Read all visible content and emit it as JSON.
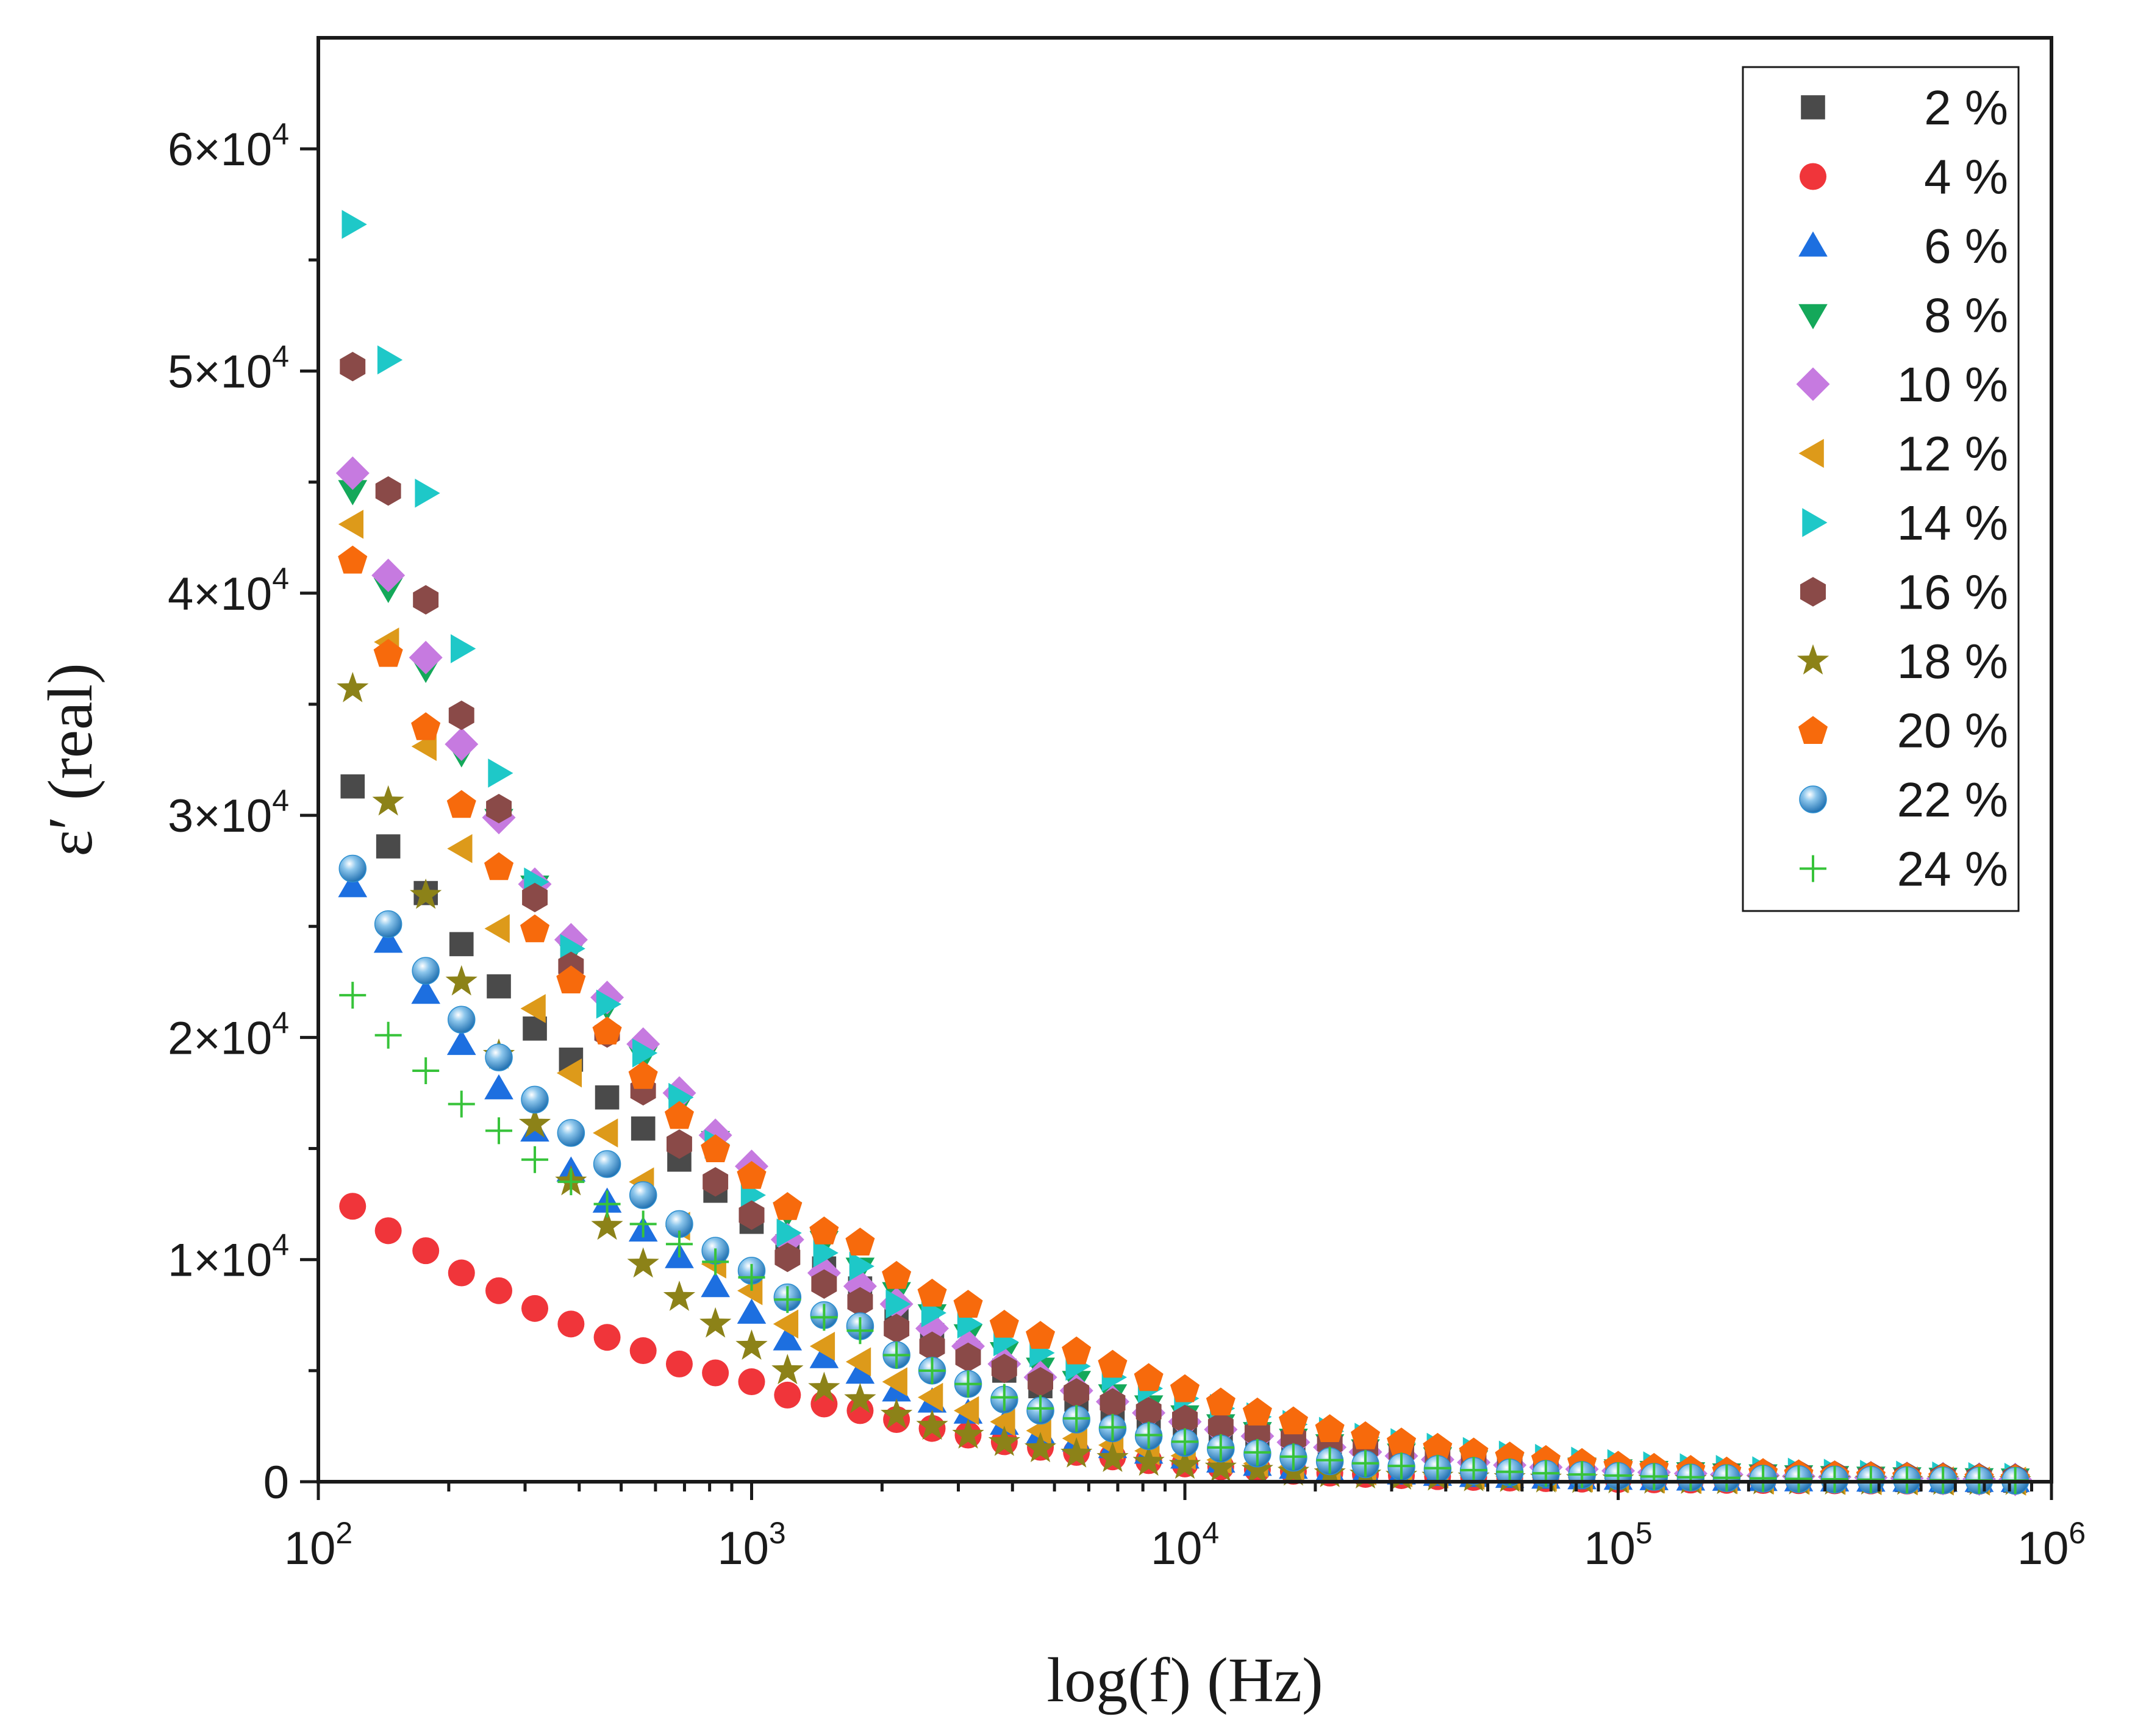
{
  "chart_data": {
    "type": "scatter",
    "title": "",
    "xlabel": "log(f) (Hz)",
    "ylabel": "ε′ (real)",
    "x_scale": "log",
    "xlim": [
      100,
      1000000
    ],
    "ylim": [
      0,
      65000
    ],
    "x_ticks": [
      {
        "base": "10",
        "exp": "2",
        "value": 100
      },
      {
        "base": "10",
        "exp": "3",
        "value": 1000
      },
      {
        "base": "10",
        "exp": "4",
        "value": 10000
      },
      {
        "base": "10",
        "exp": "5",
        "value": 100000
      },
      {
        "base": "10",
        "exp": "6",
        "value": 1000000
      }
    ],
    "y_ticks": [
      {
        "mant": "",
        "base": "0",
        "exp": "",
        "value": 0
      },
      {
        "mant": "1×",
        "base": "10",
        "exp": "4",
        "value": 10000
      },
      {
        "mant": "2×",
        "base": "10",
        "exp": "4",
        "value": 20000
      },
      {
        "mant": "3×",
        "base": "10",
        "exp": "4",
        "value": 30000
      },
      {
        "mant": "4×",
        "base": "10",
        "exp": "4",
        "value": 40000
      },
      {
        "mant": "5×",
        "base": "10",
        "exp": "4",
        "value": 50000
      },
      {
        "mant": "6×",
        "base": "10",
        "exp": "4",
        "value": 60000
      }
    ],
    "legend_position": "top-right",
    "x": [
      120,
      145,
      177,
      214,
      261,
      316,
      383,
      464,
      562,
      681,
      825,
      1000,
      1210,
      1470,
      1780,
      2160,
      2610,
      3160,
      3830,
      4640,
      5620,
      6810,
      8250,
      10000,
      12100,
      14700,
      17800,
      21600,
      26100,
      31600,
      38300,
      46400,
      56200,
      68100,
      82500,
      100000,
      121000,
      147000,
      178000,
      216000,
      261000,
      316000,
      383000,
      464000,
      562000,
      681000,
      825000
    ],
    "series": [
      {
        "name": "2 %",
        "marker": "square",
        "color": "#4a4a4a",
        "values": [
          31300,
          28600,
          26500,
          24200,
          22300,
          20400,
          19000,
          17300,
          15900,
          14500,
          13100,
          11700,
          10600,
          9600,
          8700,
          7600,
          6600,
          5800,
          5000,
          4300,
          3700,
          3100,
          2600,
          2200,
          1850,
          1550,
          1300,
          1080,
          900,
          750,
          630,
          530,
          450,
          380,
          320,
          270,
          230,
          195,
          165,
          140,
          120,
          103,
          88,
          75,
          65,
          56,
          48
        ]
      },
      {
        "name": "4 %",
        "marker": "circle",
        "color": "#f0353a",
        "values": [
          12400,
          11300,
          10400,
          9400,
          8600,
          7800,
          7100,
          6500,
          5900,
          5300,
          4900,
          4500,
          3900,
          3500,
          3200,
          2800,
          2400,
          2100,
          1800,
          1550,
          1320,
          1120,
          950,
          800,
          670,
          560,
          470,
          390,
          330,
          275,
          230,
          195,
          165,
          140,
          118,
          100,
          86,
          74,
          63,
          54,
          47,
          40,
          35,
          30,
          26,
          23,
          20
        ]
      },
      {
        "name": "6 %",
        "marker": "triangle-up",
        "color": "#1d6fe0",
        "values": [
          26800,
          24300,
          22000,
          19700,
          17700,
          15800,
          14000,
          12600,
          11300,
          10100,
          8800,
          7600,
          6400,
          5600,
          4900,
          4100,
          3600,
          3100,
          2600,
          2200,
          1850,
          1550,
          1300,
          1080,
          900,
          750,
          620,
          520,
          430,
          360,
          300,
          250,
          210,
          175,
          148,
          125,
          106,
          90,
          77,
          66,
          57,
          49,
          42,
          36,
          31,
          27,
          23
        ]
      },
      {
        "name": "8 %",
        "marker": "triangle-down",
        "color": "#14a85a",
        "values": [
          44600,
          40200,
          36600,
          32800,
          29800,
          26800,
          23900,
          21400,
          19100,
          17000,
          15300,
          13700,
          12100,
          10800,
          9600,
          8500,
          7500,
          6600,
          5800,
          5100,
          4500,
          3900,
          3400,
          2950,
          2550,
          2200,
          1900,
          1650,
          1420,
          1230,
          1060,
          920,
          800,
          690,
          600,
          520,
          450,
          390,
          340,
          295,
          255,
          220,
          190,
          165,
          143,
          124,
          108
        ]
      },
      {
        "name": "10 %",
        "marker": "diamond",
        "color": "#c67ae0",
        "values": [
          45400,
          40800,
          37100,
          33200,
          29900,
          26900,
          24400,
          21800,
          19700,
          17500,
          15600,
          14200,
          10900,
          9400,
          8800,
          8000,
          6900,
          6100,
          5300,
          4700,
          4100,
          3600,
          3100,
          2700,
          2350,
          2050,
          1780,
          1550,
          1340,
          1160,
          1000,
          870,
          750,
          650,
          565,
          490,
          425,
          370,
          320,
          280,
          243,
          212,
          184,
          160,
          139,
          121,
          105
        ]
      },
      {
        "name": "12 %",
        "marker": "triangle-left",
        "color": "#dd9a1a",
        "values": [
          43100,
          37800,
          33100,
          28500,
          24900,
          21300,
          18400,
          15700,
          13500,
          11500,
          9800,
          8600,
          7100,
          6100,
          5400,
          4500,
          3800,
          3200,
          2700,
          2300,
          1950,
          1650,
          1390,
          1170,
          980,
          820,
          690,
          580,
          485,
          405,
          340,
          285,
          240,
          200,
          170,
          143,
          121,
          102,
          87,
          74,
          63,
          54,
          46,
          39,
          34,
          29,
          25
        ]
      },
      {
        "name": "14 %",
        "marker": "triangle-right",
        "color": "#1ec8c8",
        "values": [
          56600,
          50500,
          44500,
          37500,
          31900,
          27000,
          24000,
          21500,
          19300,
          17300,
          15200,
          12900,
          11200,
          10300,
          9700,
          8000,
          7600,
          7100,
          6300,
          5800,
          5200,
          4700,
          4200,
          3750,
          3300,
          2920,
          2580,
          2270,
          2000,
          1760,
          1550,
          1360,
          1200,
          1050,
          925,
          815,
          715,
          630,
          555,
          490,
          430,
          380,
          335,
          295,
          260,
          228,
          200
        ]
      },
      {
        "name": "16 %",
        "marker": "hexagon",
        "color": "#8a4a48",
        "values": [
          50200,
          44600,
          39700,
          34500,
          30300,
          26300,
          23200,
          20200,
          17600,
          15200,
          13500,
          12000,
          10100,
          8900,
          8100,
          6900,
          6100,
          5600,
          5100,
          4500,
          4000,
          3550,
          3150,
          2800,
          2480,
          2200,
          1950,
          1720,
          1520,
          1340,
          1180,
          1040,
          915,
          805,
          710,
          625,
          550,
          485,
          425,
          375,
          330,
          290,
          255,
          225,
          198,
          174,
          153
        ]
      },
      {
        "name": "18 %",
        "marker": "star",
        "color": "#8c8218",
        "values": [
          35700,
          30600,
          26400,
          22500,
          19200,
          16100,
          13500,
          11500,
          9800,
          8300,
          7100,
          6100,
          5000,
          4200,
          3700,
          3000,
          2500,
          2100,
          1770,
          1490,
          1250,
          1050,
          880,
          740,
          620,
          520,
          435,
          365,
          305,
          255,
          213,
          178,
          149,
          125,
          104,
          87,
          73,
          61,
          51,
          43,
          36,
          30,
          25,
          21,
          18,
          15,
          13
        ]
      },
      {
        "name": "20 %",
        "marker": "pentagon",
        "color": "#f76a0c",
        "values": [
          41500,
          37300,
          34000,
          30500,
          27700,
          24900,
          22600,
          20300,
          18300,
          16500,
          15000,
          13800,
          12400,
          11300,
          10800,
          9300,
          8500,
          8000,
          7100,
          6600,
          5900,
          5300,
          4700,
          4200,
          3600,
          3150,
          2750,
          2400,
          2080,
          1800,
          1560,
          1350,
          1170,
          1010,
          875,
          755,
          655,
          565,
          490,
          425,
          368,
          318,
          275,
          238,
          206,
          178,
          154
        ]
      },
      {
        "name": "22 %",
        "marker": "sphere",
        "color": "#2d8fd0",
        "values": [
          27600,
          25100,
          23000,
          20800,
          19100,
          17200,
          15700,
          14300,
          12900,
          11600,
          10400,
          9500,
          8300,
          7500,
          7000,
          5700,
          5000,
          4400,
          3700,
          3200,
          2800,
          2400,
          2050,
          1750,
          1490,
          1270,
          1080,
          920,
          785,
          670,
          570,
          485,
          415,
          355,
          302,
          258,
          220,
          188,
          160,
          137,
          117,
          100,
          85,
          73,
          62,
          53,
          45
        ]
      },
      {
        "name": "24 %",
        "marker": "plus",
        "color": "#37c33a",
        "values": [
          21900,
          20100,
          18500,
          17000,
          15800,
          14500,
          13500,
          12500,
          11600,
          10700,
          9900,
          9200,
          8200,
          7400,
          6800,
          5700,
          5000,
          4400,
          3800,
          3300,
          2850,
          2450,
          2100,
          1800,
          1540,
          1320,
          1130,
          970,
          830,
          710,
          610,
          520,
          445,
          380,
          325,
          278,
          238,
          204,
          175,
          150,
          128,
          110,
          94,
          80,
          69,
          59,
          50
        ]
      }
    ]
  }
}
